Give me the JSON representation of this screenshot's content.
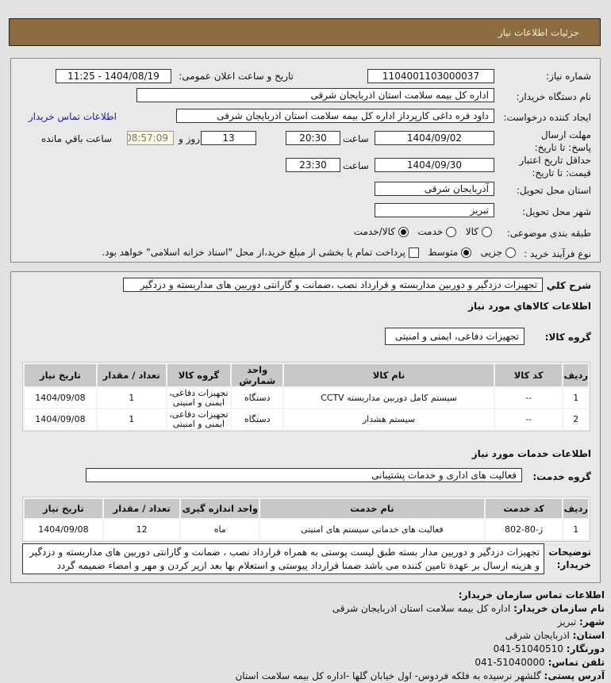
{
  "header": {
    "title": "جزئیات اطلاعات نیاز"
  },
  "form": {
    "need_number_label": "شماره نیاز:",
    "need_number": "1104001103000037",
    "announce_label": "تاریخ و ساعت اعلان عمومی:",
    "announce_value": "1404/08/19 - 11:25",
    "buyer_label": "نام دستگاه خریدار:",
    "buyer_value": "اداره کل بیمه سلامت استان اذربایجان شرقی",
    "creator_label": "ایجاد کننده درخواست:",
    "creator_value": "داود قره داغی کارپرداز اداره کل بیمه سلامت استان اذربایجان شرقی",
    "contact_link": "اطلاعات تماس خریدار",
    "deadline_label": "مهلت ارسال پاسخ: تا تاریخ:",
    "deadline_date": "1404/09/02",
    "time_label": "ساعت",
    "deadline_time": "20:30",
    "days": "13",
    "days_label": "روز و",
    "remaining": "08:57:09",
    "remaining_label": "ساعت باقي مانده",
    "validity_label": "حداقل تاریخ اعتبار قیمت: تا تاریخ:",
    "validity_date": "1404/09/30",
    "validity_time": "23:30",
    "province_label": "استان محل تحویل:",
    "province_value": "آذربایجان شرقی",
    "city_label": "شهر محل تحویل:",
    "city_value": "تبریز",
    "category_label": "طبقه بندی موضوعی:",
    "category_options": [
      "کالا",
      "خدمت",
      "کالا/خدمت"
    ],
    "category_selected": "کالا/خدمت",
    "process_label": "نوع فرآیند خرید :",
    "process_options": [
      "جزیی",
      "متوسط"
    ],
    "process_selected": "متوسط",
    "payment_note": "پرداخت تمام یا بخشی از مبلغ خرید،از محل \"اسناد خزانه اسلامی\" خواهد بود."
  },
  "details": {
    "summary_label": "شرح کلي نیاز:",
    "summary_value": "تجهیزات دزدگیر و دوربین مداربسته و قرارداد نصب ،ضمانت و گارانتی دوربین های مداربسته و دزدگیر",
    "goods_heading": "اطلاعات کالاهاي مورد نیاز",
    "goods_group_label": "گروه کالا:",
    "goods_group_value": "تجهیزات دفاعی، ایمنی و امنیتی",
    "goods_columns": [
      "ردیف",
      "کد کالا",
      "نام کالا",
      "واحد شمارش",
      "گروه کالا",
      "تعداد / مقدار",
      "تاریخ نیاز"
    ],
    "goods_rows": [
      [
        "1",
        "--",
        "سیستم کامل دوربین مداربسته CCTV",
        "دستگاه",
        "تجهیزات دفاعی، ایمنی و امنیتی",
        "1",
        "1404/09/08"
      ],
      [
        "2",
        "--",
        "سیستم هشدار",
        "دستگاه",
        "تجهیزات دفاعی، ایمنی و امنیتی",
        "1",
        "1404/09/08"
      ]
    ],
    "services_heading": "اطلاعات خدمات مورد نیاز",
    "service_group_label": "گروه خدمت:",
    "service_group_value": "فعالیت های اداری و خدمات پشتیبانی",
    "service_columns": [
      "ردیف",
      "کد خدمت",
      "نام خدمت",
      "واحد اندازه گیری",
      "تعداد / مقدار",
      "تاریخ نیاز"
    ],
    "service_rows": [
      [
        "1",
        "ژ-80-802",
        "فعالیت های خدماتی سیستم های امنیتی",
        "ماه",
        "12",
        "1404/09/08"
      ]
    ],
    "notes_label": "توضیحات خریدار:",
    "notes_value": "تجهیزات دزدگیر و دوربین مدار بسته طبق لیست پوستی به همراه قرارداد نصب ، ضمانت و گارانتی دوربین های مداربسته و دزدگیر و هزینه ارسال بر عهدة تامین کننده می باشد ضمنا قرارداد پیوستی و استعلام بها بعد ازپر کردن و مهر و امضاء ضمیمه گردد"
  },
  "contact": {
    "heading": "اطلاعات تماس سازمان خریدار:",
    "items": [
      {
        "label": "نام سازمان خریدار:",
        "value": "اداره کل بیمه سلامت استان اذربایجان شرقی"
      },
      {
        "label": "شهر:",
        "value": "تبریز"
      },
      {
        "label": "استان:",
        "value": "اذربایجان شرقی"
      },
      {
        "label": "دورنگار:",
        "value": "51040510-041"
      },
      {
        "label": "تلفن تماس:",
        "value": "51040000-041"
      },
      {
        "label": "آدرس پستی:",
        "value": "گلشهر نرسیده به فلکه فردوس- اول خیابان گلها -اداره کل بیمه سلامت استان"
      }
    ]
  }
}
